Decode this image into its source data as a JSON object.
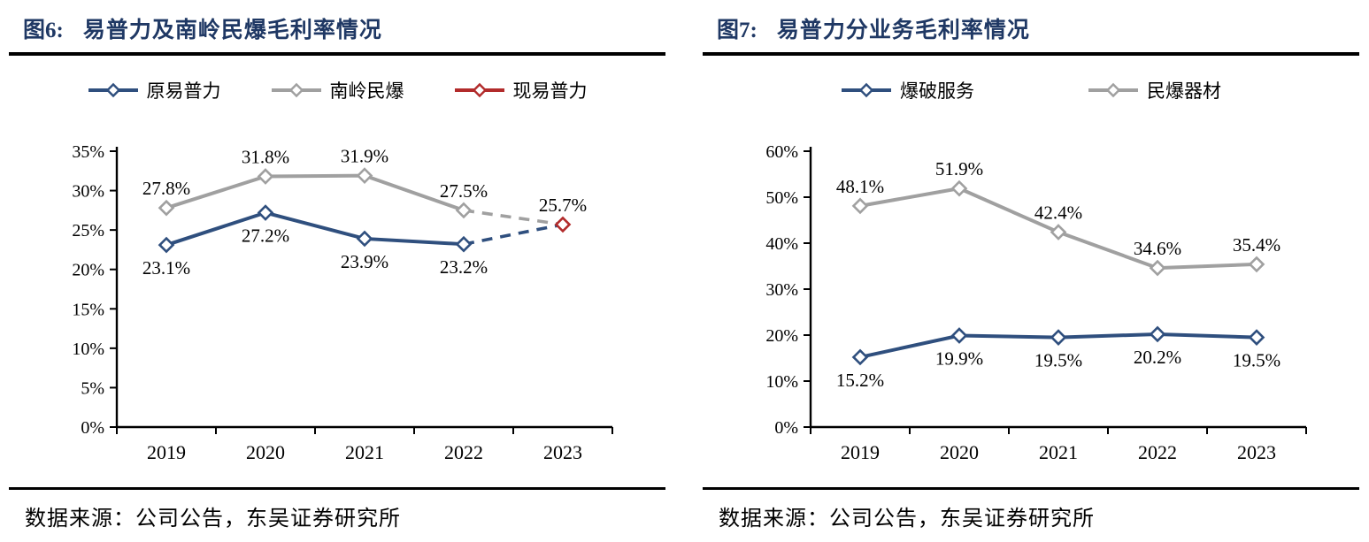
{
  "colors": {
    "blue": "#2F4F7E",
    "gray": "#A0A0A0",
    "red": "#B22B2B",
    "title_navy": "#1F3864",
    "axis": "#000000",
    "rule": "#000000"
  },
  "figures": [
    {
      "fig_label": "图6:",
      "title": "易普力及南岭民爆毛利率情况",
      "source": "数据来源：公司公告，东吴证券研究所",
      "legend": [
        {
          "label": "原易普力",
          "color_key": "blue"
        },
        {
          "label": "南岭民爆",
          "color_key": "gray"
        },
        {
          "label": "现易普力",
          "color_key": "red"
        }
      ]
    },
    {
      "fig_label": "图7:",
      "title": "易普力分业务毛利率情况",
      "source": "数据来源：公司公告，东吴证券研究所",
      "legend": [
        {
          "label": "爆破服务",
          "color_key": "blue"
        },
        {
          "label": "民爆器材",
          "color_key": "gray"
        }
      ]
    }
  ],
  "chart_data": [
    {
      "type": "line",
      "title": "易普力及南岭民爆毛利率情况",
      "categories": [
        "2019",
        "2020",
        "2021",
        "2022",
        "2023"
      ],
      "ylim": [
        0,
        35
      ],
      "ytick_step": 5,
      "ytick_labels": [
        "0%",
        "5%",
        "10%",
        "15%",
        "20%",
        "25%",
        "30%",
        "35%"
      ],
      "grid": false,
      "legend_position": "top-center",
      "series": [
        {
          "name": "原易普力",
          "color_key": "blue",
          "values": [
            23.1,
            27.2,
            23.9,
            23.2,
            null
          ],
          "labels": [
            "23.1%",
            "27.2%",
            "23.9%",
            "23.2%",
            null
          ],
          "label_position": "below"
        },
        {
          "name": "南岭民爆",
          "color_key": "gray",
          "values": [
            27.8,
            31.8,
            31.9,
            27.5,
            null
          ],
          "labels": [
            "27.8%",
            "31.8%",
            "31.9%",
            "27.5%",
            null
          ],
          "label_position": "above"
        },
        {
          "name": "现易普力",
          "color_key": "red",
          "values": [
            null,
            null,
            null,
            null,
            25.7
          ],
          "labels": [
            null,
            null,
            null,
            null,
            "25.7%"
          ],
          "label_position": "above"
        }
      ],
      "dashed_connectors": [
        {
          "color_key": "blue",
          "from": [
            3,
            23.2
          ],
          "to": [
            4,
            25.7
          ]
        },
        {
          "color_key": "gray",
          "from": [
            3,
            27.5
          ],
          "to": [
            4,
            25.7
          ]
        }
      ]
    },
    {
      "type": "line",
      "title": "易普力分业务毛利率情况",
      "categories": [
        "2019",
        "2020",
        "2021",
        "2022",
        "2023"
      ],
      "ylim": [
        0,
        60
      ],
      "ytick_step": 10,
      "ytick_labels": [
        "0%",
        "10%",
        "20%",
        "30%",
        "40%",
        "50%",
        "60%"
      ],
      "grid": false,
      "legend_position": "top-center",
      "series": [
        {
          "name": "爆破服务",
          "color_key": "blue",
          "values": [
            15.2,
            19.9,
            19.5,
            20.2,
            19.5
          ],
          "labels": [
            "15.2%",
            "19.9%",
            "19.5%",
            "20.2%",
            "19.5%"
          ],
          "label_position": "below"
        },
        {
          "name": "民爆器材",
          "color_key": "gray",
          "values": [
            48.1,
            51.9,
            42.4,
            34.6,
            35.4
          ],
          "labels": [
            "48.1%",
            "51.9%",
            "42.4%",
            "34.6%",
            "35.4%"
          ],
          "label_position": "above"
        }
      ],
      "dashed_connectors": []
    }
  ]
}
